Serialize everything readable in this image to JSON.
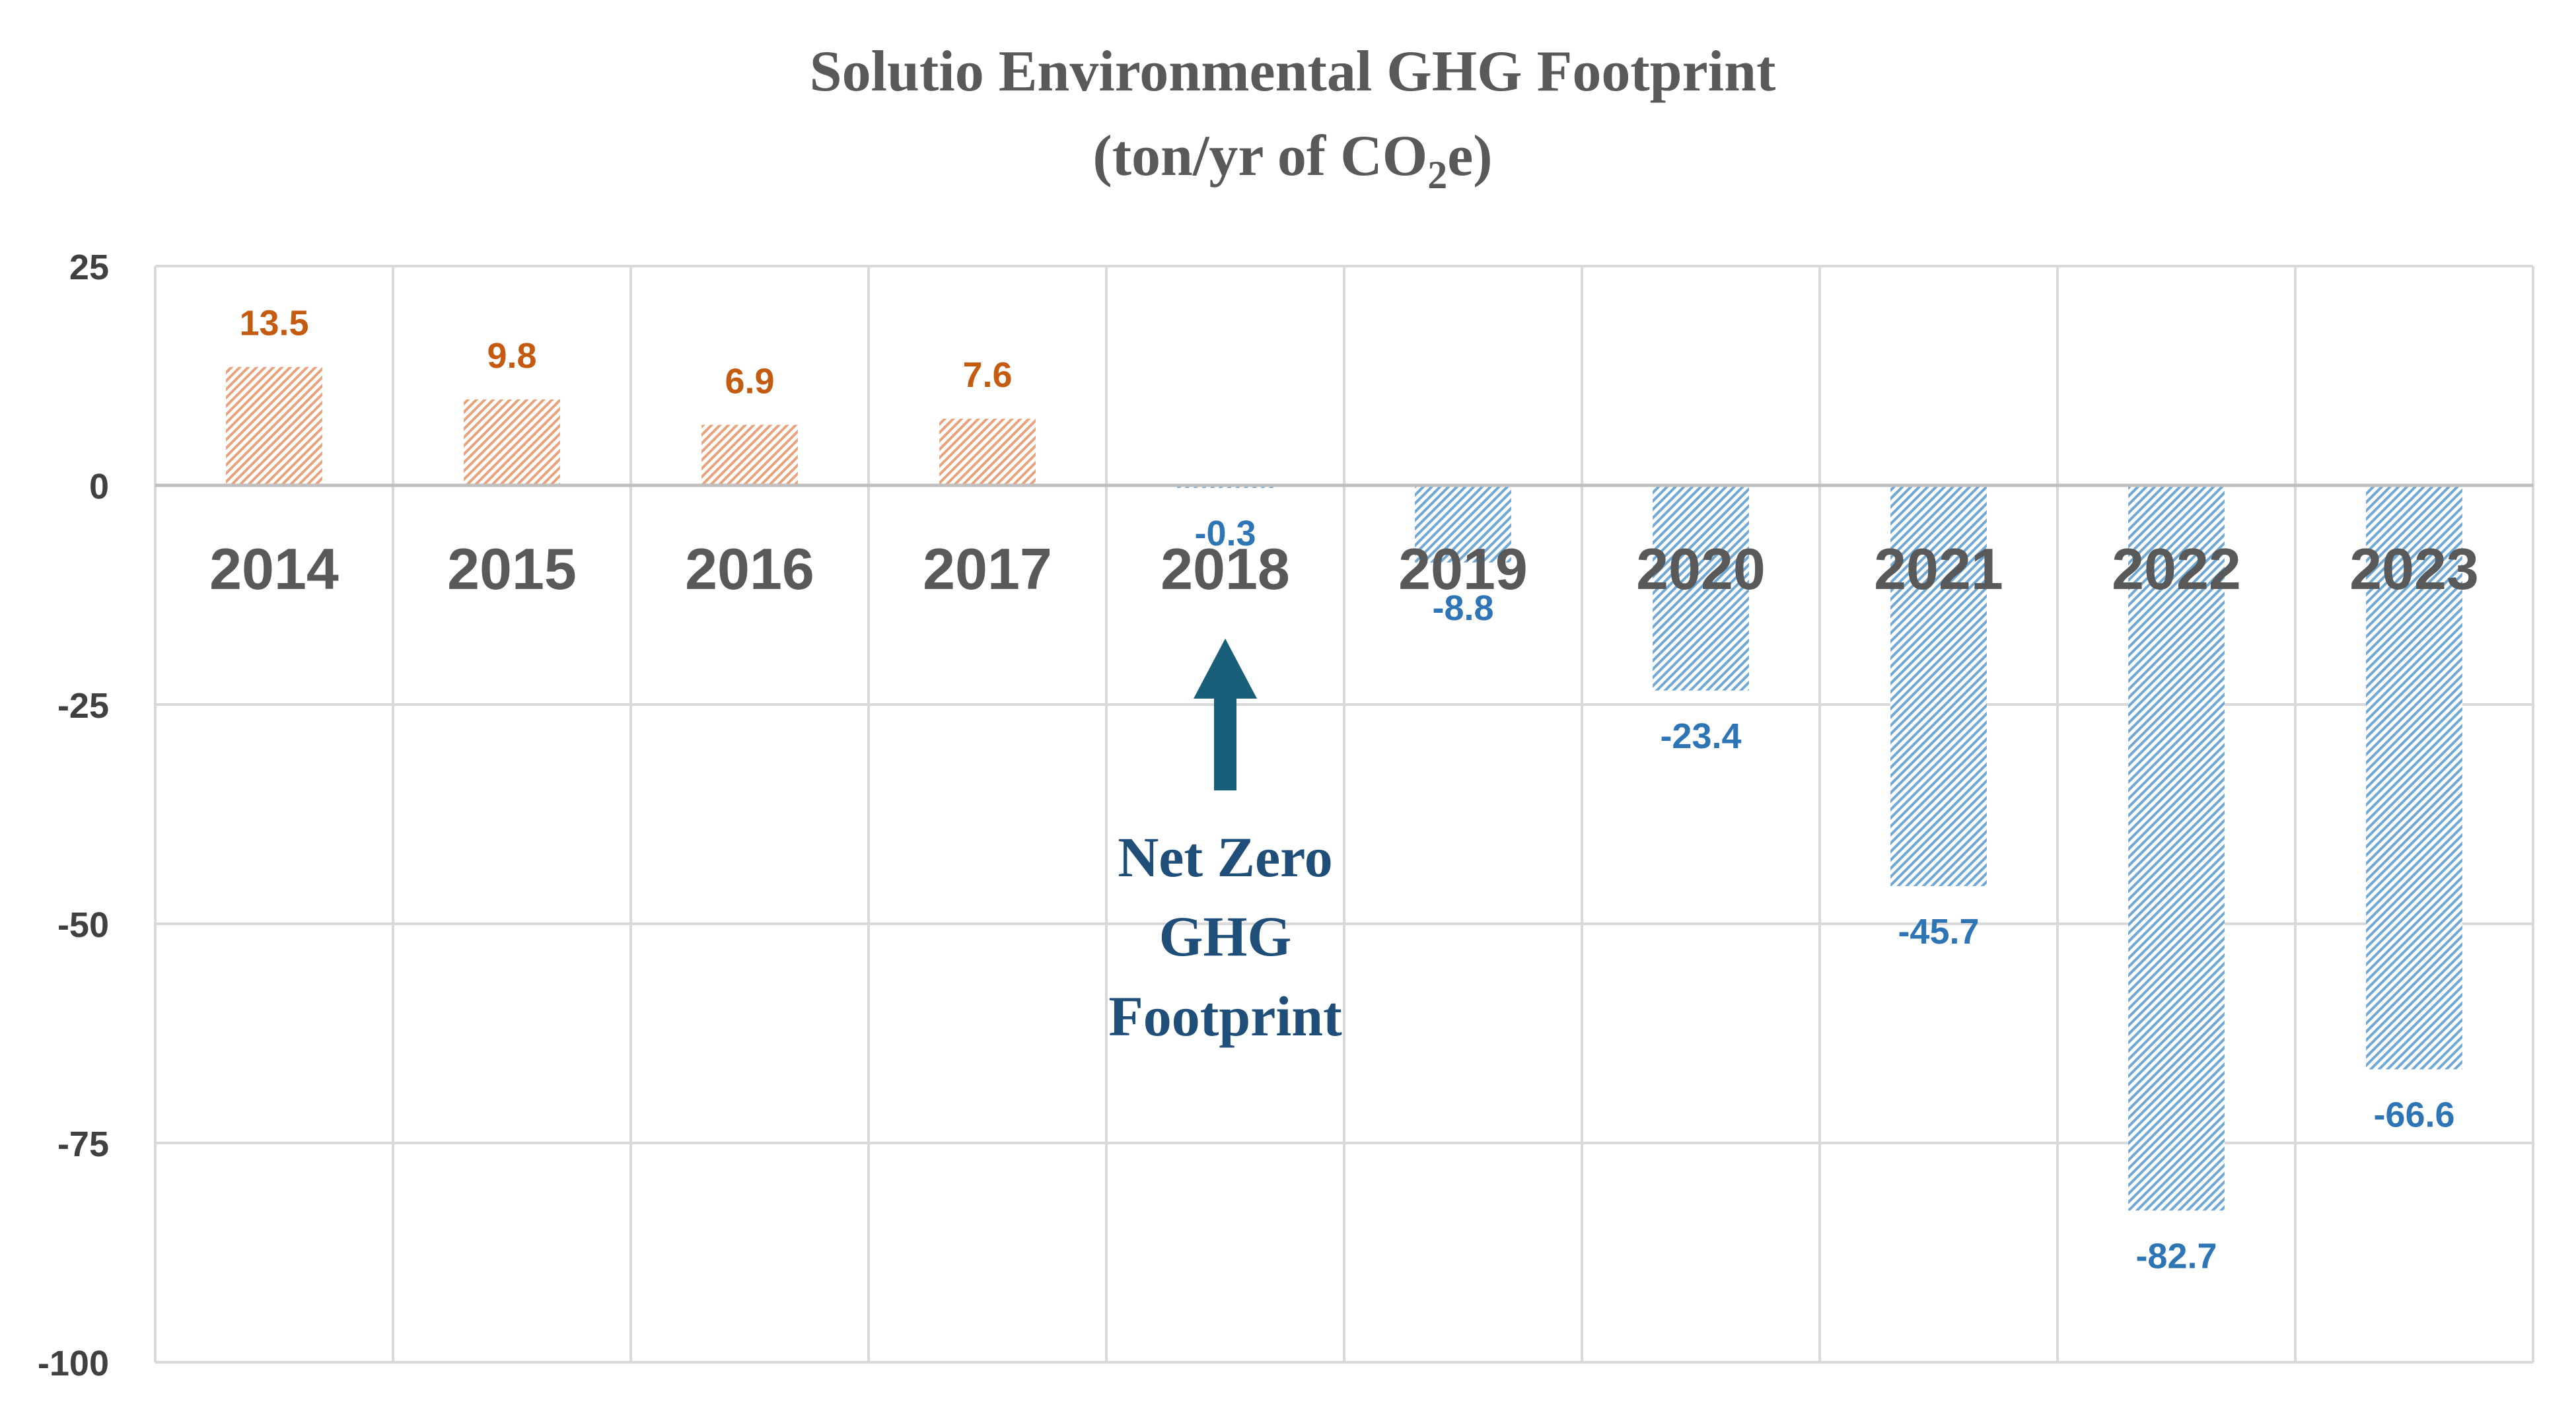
{
  "chart_data": {
    "type": "bar",
    "title": "Solutio Environmental GHG Footprint",
    "subtitle_prefix": "(ton/yr of CO",
    "subtitle_sub": "2",
    "subtitle_suffix": "e)",
    "categories": [
      "2014",
      "2015",
      "2016",
      "2017",
      "2018",
      "2019",
      "2020",
      "2021",
      "2022",
      "2023"
    ],
    "values": [
      13.5,
      9.8,
      6.9,
      7.6,
      -0.3,
      -8.8,
      -23.4,
      -45.7,
      -82.7,
      -66.6
    ],
    "data_labels": [
      "13.5",
      "9.8",
      "6.9",
      "7.6",
      "-0.3",
      "-8.8",
      "-23.4",
      "-45.7",
      "-82.7",
      "-66.6"
    ],
    "ylim": [
      -100,
      25
    ],
    "yticks": [
      25,
      0,
      -25,
      -50,
      -75,
      -100
    ],
    "ytick_labels": [
      "25",
      "0",
      "-25",
      "-50",
      "-75",
      "-100"
    ],
    "grid": true,
    "xlabel": "",
    "ylabel": "",
    "annotation": {
      "lines": [
        "Net Zero",
        "GHG",
        "Footprint"
      ],
      "category": "2018",
      "color": "#1f4e79",
      "arrow_color": "#1a5f7a"
    },
    "colors": {
      "positive": "#e8a27c",
      "positive_label": "#c55a11",
      "negative": "#6fa8d4",
      "negative_label": "#2e75b6",
      "grid": "#d9d9d9",
      "title": "#595959"
    }
  }
}
